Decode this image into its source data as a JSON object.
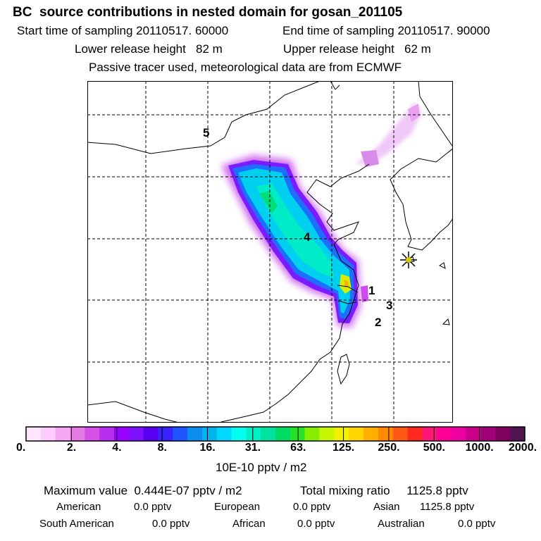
{
  "header": {
    "title": "BC  source contributions in nested domain for gosan_201105",
    "start_label": "Start time of sampling 20110517. 60000",
    "end_label": "End time of sampling 20110517. 90000",
    "lower_label": "Lower release height   82 m",
    "upper_label": "Upper release height   62 m",
    "note": "Passive tracer used, meteorological data are from ECMWF"
  },
  "chart_data": {
    "type": "heatmap",
    "title": "BC  source contributions in nested domain for gosan_201105",
    "colorbar": {
      "ticks": [
        "0.",
        "2.",
        "4.",
        "8.",
        "16.",
        "31.",
        "63.",
        "125.",
        "250.",
        "500.",
        "1000.",
        "2000."
      ],
      "unit": "10E-10 pptv / m2",
      "colors": [
        "#ffe6ff",
        "#ffccff",
        "#f5a6f5",
        "#e67ae6",
        "#d64fe6",
        "#b830ef",
        "#9a00ff",
        "#7c10ff",
        "#5a00f0",
        "#3a22ff",
        "#1e55ff",
        "#0a8cf0",
        "#00b4f0",
        "#00d8ff",
        "#00ffee",
        "#00f0c8",
        "#00e2a0",
        "#00dc64",
        "#28e228",
        "#86ee00",
        "#c8f500",
        "#f0f000",
        "#ffd400",
        "#ffaf00",
        "#ff8a00",
        "#ff5a14",
        "#ff2a1e",
        "#ff1478",
        "#ff0096",
        "#eb00a0",
        "#c8008c",
        "#a00078",
        "#80005f",
        "#501450"
      ],
      "group_size": 3
    },
    "markers": [
      {
        "label": "1",
        "lon": 123.6,
        "lat": 31.9
      },
      {
        "label": "2",
        "lon": 124.0,
        "lat": 29.8
      },
      {
        "label": "3",
        "lon": 124.5,
        "lat": 30.6
      },
      {
        "label": "4",
        "lon": 117.5,
        "lat": 37.0
      },
      {
        "label": "5",
        "lon": 110.0,
        "lat": 48.0
      }
    ],
    "receptor": {
      "name": "gosan",
      "lon": 126.2,
      "lat": 33.3
    },
    "plume_center": {
      "lon": 120.5,
      "lat": 33.5
    }
  },
  "stats": {
    "max_label": "Maximum value  0.444E-07 pptv / m2",
    "total_label": "Total mixing ratio     1125.8 pptv",
    "regions": [
      {
        "name": "American",
        "value": "0.0 pptv"
      },
      {
        "name": "European",
        "value": "0.0 pptv"
      },
      {
        "name": "Asian",
        "value": "1125.8 pptv"
      },
      {
        "name": "South American",
        "value": "0.0 pptv"
      },
      {
        "name": "African",
        "value": "0.0 pptv"
      },
      {
        "name": "Australian",
        "value": "0.0 pptv"
      }
    ]
  }
}
